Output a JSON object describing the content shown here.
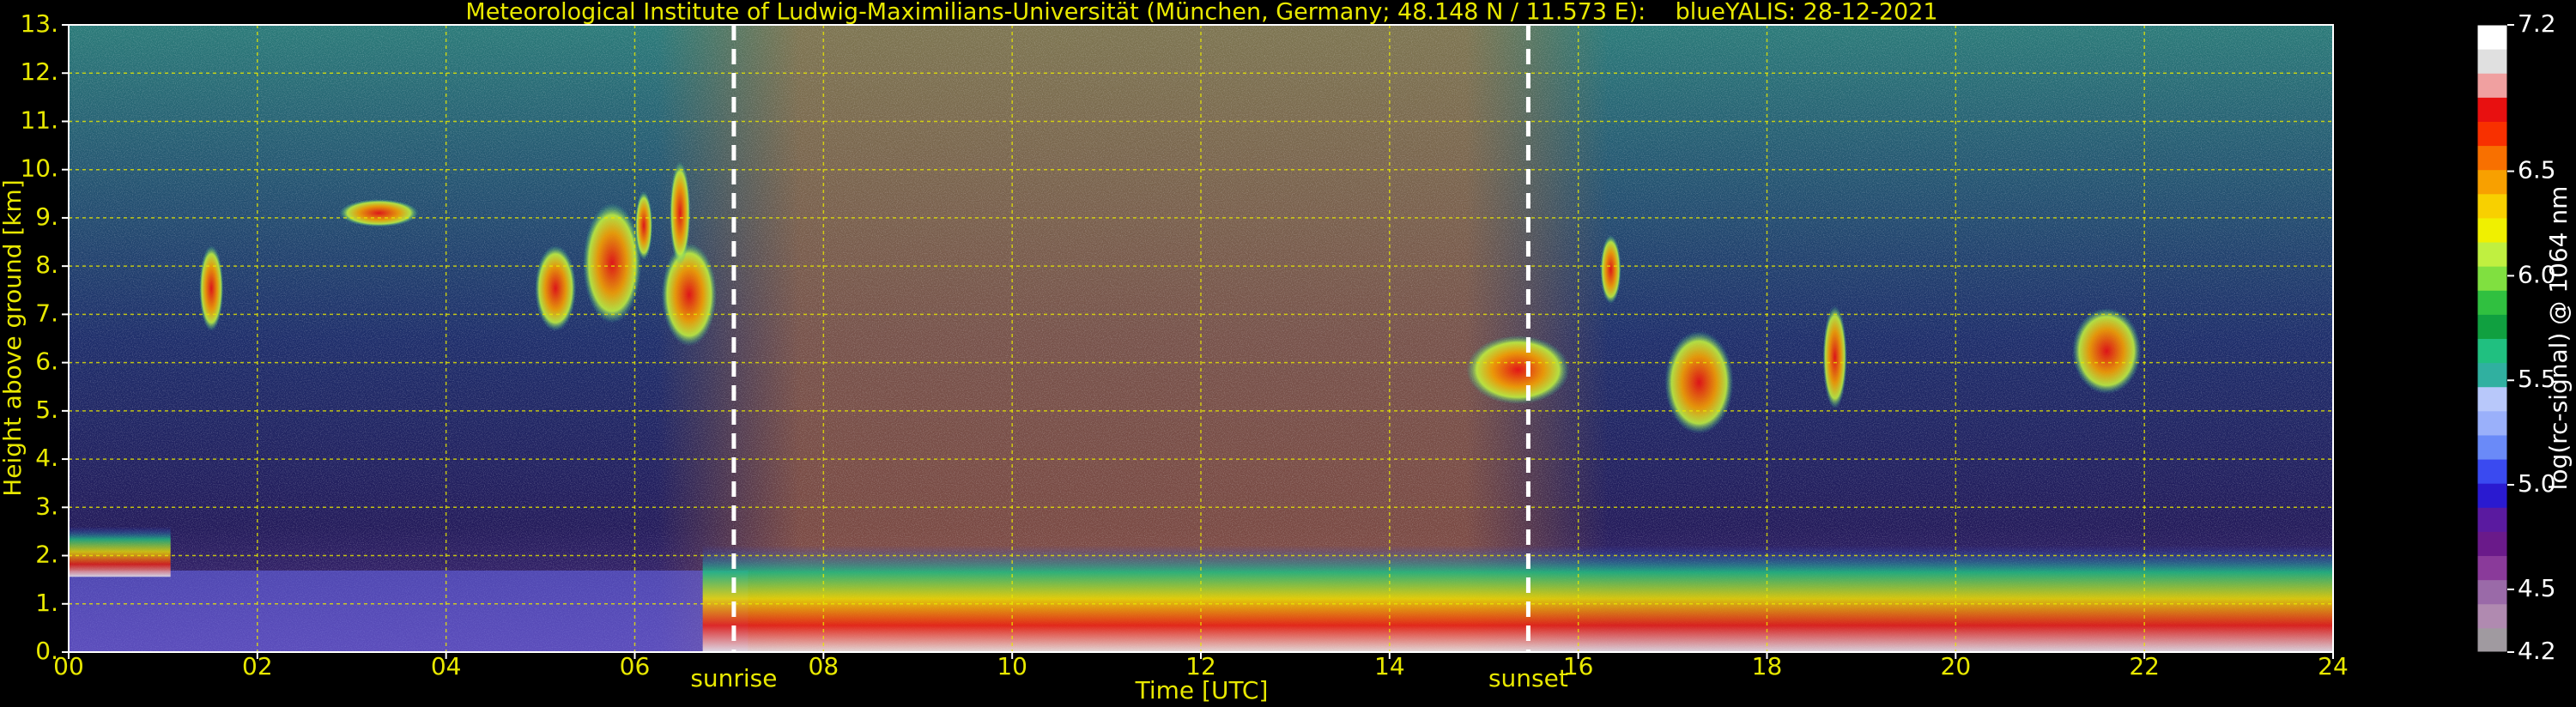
{
  "chart_data": {
    "type": "heatmap",
    "title": "Meteorological Institute of Ludwig-Maximilians-Universität (München, Germany; 48.148 N / 11.573 E):    blueYALIS: 28-12-2021",
    "xlabel": "Time [UTC]",
    "ylabel": "Height above ground [km]",
    "xlim": [
      0,
      24
    ],
    "ylim": [
      0,
      13
    ],
    "xticks": [
      {
        "value": 0,
        "label": "00"
      },
      {
        "value": 2,
        "label": "02"
      },
      {
        "value": 4,
        "label": "04"
      },
      {
        "value": 6,
        "label": "06"
      },
      {
        "value": 8,
        "label": "08"
      },
      10,
      12,
      14,
      16,
      18,
      20,
      22,
      24
    ],
    "yticks": [
      {
        "value": 0,
        "label": "0."
      },
      {
        "value": 1,
        "label": "1."
      },
      {
        "value": 2,
        "label": "2."
      },
      {
        "value": 3,
        "label": "3."
      },
      {
        "value": 4,
        "label": "4."
      },
      {
        "value": 5,
        "label": "5."
      },
      {
        "value": 6,
        "label": "6."
      },
      {
        "value": 7,
        "label": "7."
      },
      {
        "value": 8,
        "label": "8."
      },
      {
        "value": 9,
        "label": "9."
      },
      {
        "value": 10,
        "label": "10."
      },
      {
        "value": 11,
        "label": "11."
      },
      {
        "value": 12,
        "label": "12."
      },
      {
        "value": 13,
        "label": "13."
      }
    ],
    "grid": true,
    "grid_color": "#e8e800",
    "annotations": [
      {
        "text": "sunrise",
        "x": 7.05
      },
      {
        "text": "sunset",
        "x": 15.47
      }
    ],
    "colorbar": {
      "label": "log(rc-signal) @ 1064 nm",
      "lim": [
        4.2,
        7.2
      ],
      "ticks": [
        4.2,
        4.5,
        {
          "value": 5,
          "label": "5.0"
        },
        5.5,
        {
          "value": 6,
          "label": "6.0"
        },
        6.5,
        7.2
      ],
      "colors": [
        "#a09aa0",
        "#b08ab0",
        "#9a6aa8",
        "#8a3a9a",
        "#6a1a8a",
        "#5a1aa0",
        "#2a1ad0",
        "#3a4af0",
        "#6a8af8",
        "#9ab0fa",
        "#b8c8fa",
        "#30b0a0",
        "#20c080",
        "#10a040",
        "#30c040",
        "#80e040",
        "#c0f040",
        "#f0f000",
        "#f8d000",
        "#f8a000",
        "#f87000",
        "#f83000",
        "#e81010",
        "#f0a0a0",
        "#e0e0e0",
        "#ffffff"
      ]
    }
  }
}
